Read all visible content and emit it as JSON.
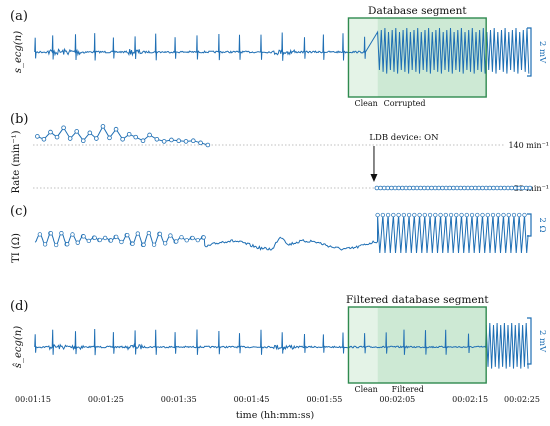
{
  "chart_data": {
    "type": "line",
    "color": "#1f6fb4",
    "box_color": "#2f8a4f",
    "x_axis": {
      "label": "time (hh:mm:ss)",
      "ticks": [
        "00:01:15",
        "00:01:25",
        "00:01:35",
        "00:01:45",
        "00:01:55",
        "00:02:05",
        "00:02:15",
        "00:02:25"
      ],
      "range_s": [
        75,
        145
      ]
    },
    "panels": [
      {
        "letter": "(a)",
        "ylabel": "s_ecg(n)",
        "scale_bar": "2 mV",
        "box": {
          "title": "Database segment",
          "sub_left": "Clean",
          "sub_right": "Corrupted",
          "range_s": [
            118.3,
            137.2
          ],
          "clean_end_s": 122.3
        },
        "series": {
          "regime_change_s": 122.3,
          "ends_s": 143.0
        }
      },
      {
        "letter": "(b)",
        "ylabel": "Rate (min⁻¹)",
        "annotation": "LDB device: ON",
        "annotation_at_s": 121.8,
        "reference_lines": [
          {
            "label": "140 min⁻¹",
            "value": 140
          },
          {
            "label": "80 min⁻¹",
            "value": 80
          }
        ],
        "series": {
          "segment1": {
            "x_s": [
              75.6,
              76.5,
              77.4,
              78.3,
              79.2,
              80.1,
              81.0,
              81.9,
              82.8,
              83.7,
              84.6,
              85.5,
              86.4,
              87.3,
              88.2,
              89.1,
              90.1,
              91.0,
              92.0,
              93.0,
              94.0,
              95.0,
              96.0,
              97.0,
              98.0,
              99.0
            ],
            "y": [
              152,
              148,
              158,
              151,
              164,
              149,
              159,
              146,
              157,
              149,
              166,
              150,
              162,
              148,
              155,
              151,
              146,
              154,
              148,
              145,
              147,
              146,
              145,
              146,
              143,
              140
            ]
          },
          "segment2": {
            "x_start_s": 122.2,
            "x_end_s": 143.5,
            "y": 80
          }
        }
      },
      {
        "letter": "(c)",
        "ylabel": "TI (Ω)",
        "scale_bar": "2 Ω",
        "series": {
          "regime_change_s": 122.3,
          "ends_s": 143.0
        }
      },
      {
        "letter": "(d)",
        "ylabel": "ŝ_ecg(n)",
        "scale_bar": "2 mV",
        "box": {
          "title": "Filtered database segment",
          "sub_left": "Clean",
          "sub_right": "Filtered",
          "range_s": [
            118.3,
            137.2
          ],
          "clean_end_s": 122.3
        },
        "series": {
          "ends_s": 143.0
        }
      }
    ]
  }
}
